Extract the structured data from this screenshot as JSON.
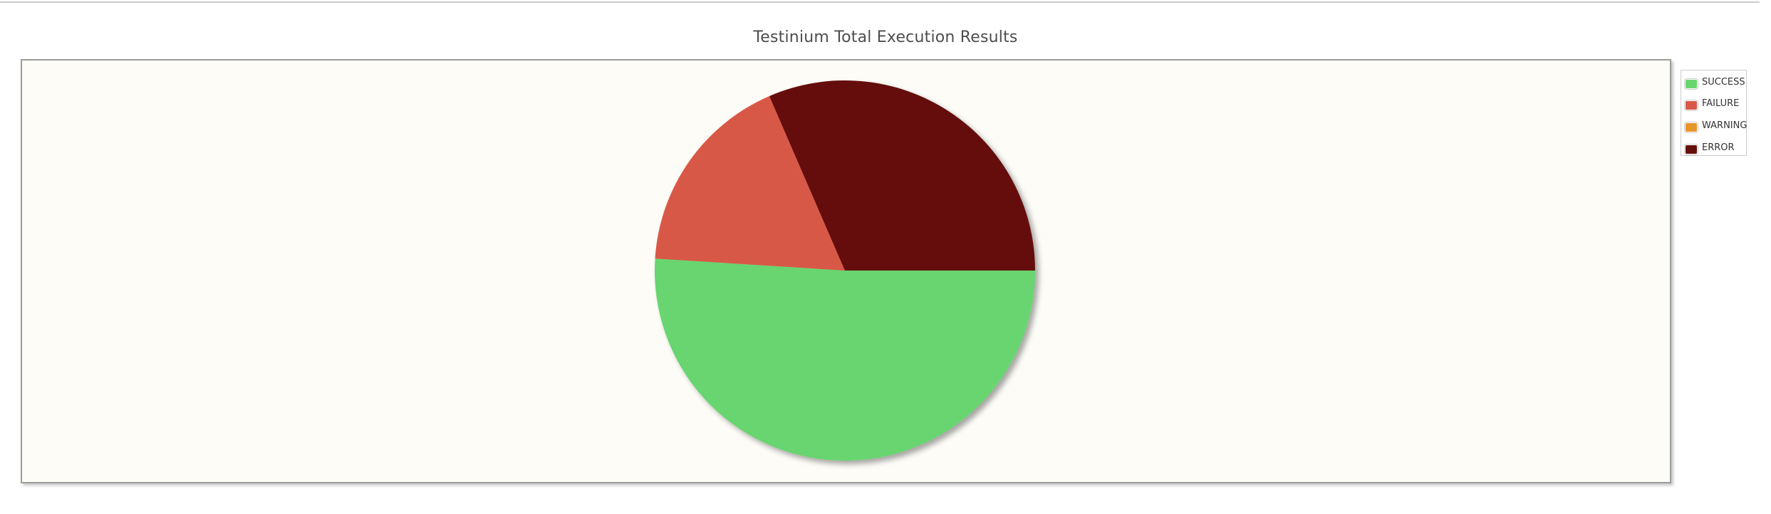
{
  "chart_data": {
    "type": "pie",
    "title": "Testinium Total Execution Results",
    "slices": [
      {
        "label": "SUCCESS",
        "value": 51,
        "color": "#68d56f"
      },
      {
        "label": "FAILURE",
        "value": 17.5,
        "color": "#d85947"
      },
      {
        "label": "WARNING",
        "value": 0,
        "color": "#e8962c"
      },
      {
        "label": "ERROR",
        "value": 31.5,
        "color": "#65100b"
      }
    ],
    "legend_position": "top-right",
    "plot_background": "#fdfcf7"
  }
}
